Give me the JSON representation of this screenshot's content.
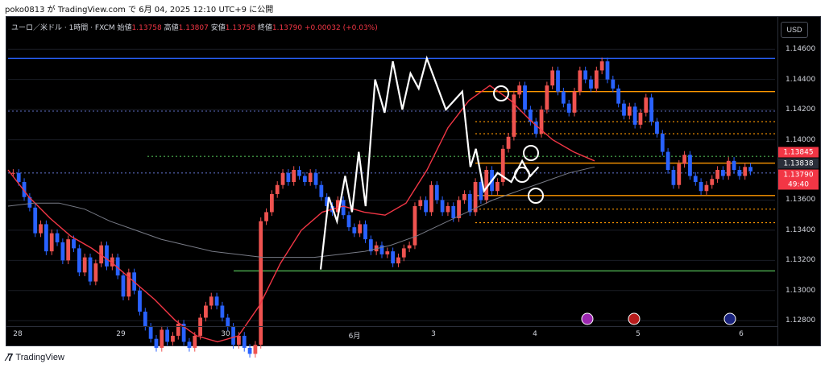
{
  "caption": "poko0813 が TradingView.com で 6月 04, 2025 12:10 UTC+9 に公開",
  "legend": {
    "symbol": "ユーロ／米ドル · 1時間 · FXCM",
    "open_label": "始値",
    "open": "1.13758",
    "high_label": "高値",
    "high": "1.13807",
    "low_label": "安値",
    "low": "1.13758",
    "close_label": "終値",
    "close": "1.13790",
    "change": "+0.00032 (+0.03%)"
  },
  "currency_button": "USD",
  "price_ticks": [
    "1.14600",
    "1.14400",
    "1.14200",
    "1.14000",
    "1.13600",
    "1.13400",
    "1.13200",
    "1.13000",
    "1.12800"
  ],
  "price_labels": [
    {
      "text": "1.13845",
      "color": "#f23645"
    },
    {
      "text": "1.13838",
      "color": "#2a2e39"
    },
    {
      "text": "1.13790",
      "color": "#f23645"
    },
    {
      "text": "49:40",
      "color": "#f23645"
    }
  ],
  "time_ticks": [
    "28",
    "29",
    "30",
    "6月",
    "3",
    "4",
    "5",
    "6"
  ],
  "footer": {
    "logo_text": "TradingView"
  },
  "colors": {
    "up": "#ef5350",
    "down": "#2962ff",
    "ma_fast": "#f23645",
    "ma_slow": "#787b86",
    "orange": "#ff9800",
    "green": "#4caf50",
    "blue_line": "#2962ff"
  },
  "icons": [
    "lightning-event-icon",
    "us-flag-event-icon",
    "eu-flag-event-icon"
  ],
  "chart_data": {
    "type": "candlestick",
    "symbol": "EURUSD",
    "interval": "1h",
    "ylim": [
      1.1278,
      1.1466
    ],
    "y_ticks": [
      1.146,
      1.144,
      1.142,
      1.14,
      1.136,
      1.134,
      1.132,
      1.13,
      1.128
    ],
    "x_labels": [
      "28",
      "29",
      "30",
      "6月",
      "3",
      "4",
      "5",
      "6"
    ],
    "horizontal_levels": [
      {
        "price": 1.1454,
        "style": "solid",
        "color": "#2962ff"
      },
      {
        "price": 1.1432,
        "style": "solid",
        "color": "#ff9800"
      },
      {
        "price": 1.1412,
        "style": "dotted",
        "color": "#ff9800"
      },
      {
        "price": 1.1404,
        "style": "dotted",
        "color": "#ff9800"
      },
      {
        "price": 1.13845,
        "style": "solid",
        "color": "#ff9800"
      },
      {
        "price": 1.1389,
        "style": "dotted",
        "color": "#4caf50"
      },
      {
        "price": 1.1363,
        "style": "solid",
        "color": "#ff9800"
      },
      {
        "price": 1.1354,
        "style": "dotted",
        "color": "#ff9800"
      },
      {
        "price": 1.1345,
        "style": "dotted",
        "color": "#ff9800"
      },
      {
        "price": 1.1313,
        "style": "solid",
        "color": "#4caf50"
      },
      {
        "price": 1.1419,
        "style": "dotted",
        "color": "#5c6bc0"
      },
      {
        "price": 1.1378,
        "style": "dotted",
        "color": "#5c6bc0"
      }
    ],
    "closes": [
      1.1378,
      1.1372,
      1.1362,
      1.1355,
      1.1338,
      1.1344,
      1.1326,
      1.1338,
      1.1332,
      1.132,
      1.1334,
      1.1328,
      1.1312,
      1.1322,
      1.1306,
      1.1318,
      1.133,
      1.1316,
      1.1322,
      1.131,
      1.1296,
      1.1312,
      1.13,
      1.1286,
      1.1276,
      1.1268,
      1.1262,
      1.1274,
      1.1266,
      1.127,
      1.1278,
      1.1266,
      1.1262,
      1.127,
      1.1282,
      1.129,
      1.1296,
      1.129,
      1.1282,
      1.1276,
      1.1264,
      1.127,
      1.1262,
      1.1258,
      1.1264,
      1.1346,
      1.1352,
      1.1364,
      1.137,
      1.1378,
      1.1372,
      1.138,
      1.1376,
      1.1372,
      1.1378,
      1.137,
      1.1362,
      1.1356,
      1.1352,
      1.136,
      1.135,
      1.1342,
      1.1338,
      1.1344,
      1.1334,
      1.1326,
      1.133,
      1.1324,
      1.1326,
      1.1318,
      1.1322,
      1.1328,
      1.133,
      1.1356,
      1.136,
      1.1352,
      1.137,
      1.136,
      1.1352,
      1.1356,
      1.1348,
      1.136,
      1.1364,
      1.1352,
      1.1372,
      1.136,
      1.138,
      1.1366,
      1.1372,
      1.1394,
      1.1402,
      1.143,
      1.1436,
      1.142,
      1.1412,
      1.1404,
      1.142,
      1.1436,
      1.1446,
      1.1432,
      1.1424,
      1.1418,
      1.1432,
      1.1446,
      1.144,
      1.1434,
      1.1446,
      1.1452,
      1.144,
      1.1434,
      1.1424,
      1.1416,
      1.1422,
      1.141,
      1.1418,
      1.1428,
      1.1412,
      1.1404,
      1.1392,
      1.138,
      1.137,
      1.1384,
      1.139,
      1.1376,
      1.1372,
      1.1366,
      1.137,
      1.1374,
      1.138,
      1.1376,
      1.1386,
      1.138,
      1.1376,
      1.1382,
      1.1379
    ],
    "ma_fast": [
      1.138,
      1.1362,
      1.1348,
      1.1336,
      1.1328,
      1.1318,
      1.1306,
      1.1294,
      1.128,
      1.127,
      1.1266,
      1.127,
      1.129,
      1.1318,
      1.134,
      1.1352,
      1.1356,
      1.1352,
      1.135,
      1.1358,
      1.138,
      1.1408,
      1.1426,
      1.1436,
      1.1426,
      1.1412,
      1.14,
      1.1392,
      1.1386
    ],
    "ma_slow": [
      1.1356,
      1.1358,
      1.1358,
      1.1354,
      1.1346,
      1.134,
      1.1334,
      1.133,
      1.1326,
      1.1324,
      1.1322,
      1.1322,
      1.1322,
      1.1324,
      1.1326,
      1.133,
      1.1336,
      1.1344,
      1.1352,
      1.136,
      1.1366,
      1.1372,
      1.1378,
      1.1382
    ],
    "zigzag": [
      [
        1.1314,
        0.0
      ],
      [
        1.1362,
        0.03
      ],
      [
        1.1346,
        0.06
      ],
      [
        1.1376,
        0.09
      ],
      [
        1.1352,
        0.115
      ],
      [
        1.1392,
        0.14
      ],
      [
        1.1356,
        0.165
      ],
      [
        1.144,
        0.2
      ],
      [
        1.1418,
        0.235
      ],
      [
        1.1452,
        0.265
      ],
      [
        1.142,
        0.3
      ],
      [
        1.1444,
        0.33
      ],
      [
        1.1434,
        0.36
      ],
      [
        1.1454,
        0.39
      ],
      [
        1.142,
        0.46
      ],
      [
        1.1432,
        0.52
      ],
      [
        1.1382,
        0.55
      ],
      [
        1.1394,
        0.57
      ],
      [
        1.1366,
        0.6
      ],
      [
        1.1378,
        0.65
      ],
      [
        1.1372,
        0.7
      ],
      [
        1.1386,
        0.74
      ],
      [
        1.1376,
        0.77
      ],
      [
        1.1382,
        0.8
      ]
    ]
  }
}
